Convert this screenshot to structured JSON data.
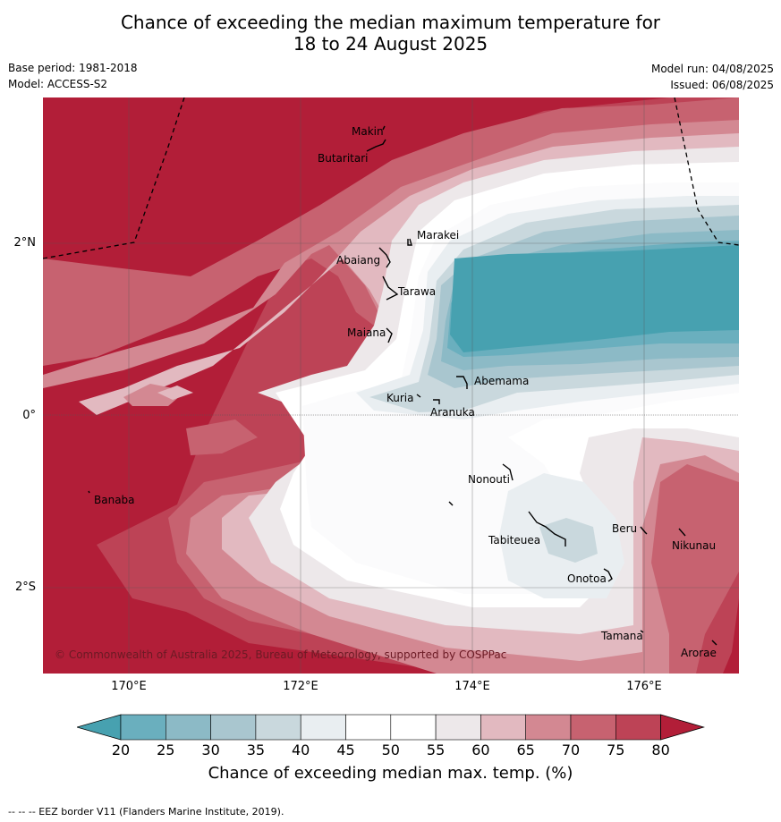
{
  "title": {
    "line1": "Chance of exceeding the median maximum temperature for",
    "line2": "18 to 24 August 2025"
  },
  "meta": {
    "base_period": "Base period: 1981-2018",
    "model": "Model: ACCESS-S2",
    "model_run": "Model run: 04/08/2025",
    "issued": "Issued: 06/08/2025"
  },
  "map": {
    "lon_ticks": [
      "170°E",
      "172°E",
      "174°E",
      "176°E"
    ],
    "lat_ticks": [
      "2°N",
      "0°",
      "2°S"
    ],
    "places": [
      "Makin",
      "Butaritari",
      "Marakei",
      "Abaiang",
      "Tarawa",
      "Maiana",
      "Abemama",
      "Kuria",
      "Aranuka",
      "Banaba",
      "Nonouti",
      "Tabiteuea",
      "Beru",
      "Nikunau",
      "Onotoa",
      "Tamana",
      "Arorae"
    ],
    "copyright": "© Commonwealth of Australia 2025, Bureau of Meteorology, supported by COSPPac"
  },
  "colorbar": {
    "labels": [
      "20",
      "25",
      "30",
      "35",
      "40",
      "45",
      "50",
      "55",
      "60",
      "65",
      "70",
      "75",
      "80"
    ],
    "colors": [
      "#47a1b0",
      "#6aafbe",
      "#8cbac6",
      "#a9c6cf",
      "#c9d8dd",
      "#e9eef1",
      "#ffffff",
      "#ffffff",
      "#ede8ea",
      "#e2b9c0",
      "#d38892",
      "#c76270",
      "#bd4356",
      "#b21e38"
    ],
    "title": "Chance of exceeding median max. temp. (%)"
  },
  "footer": "--  --  -- EEZ border V11 (Flanders Marine Institute, 2019)."
}
